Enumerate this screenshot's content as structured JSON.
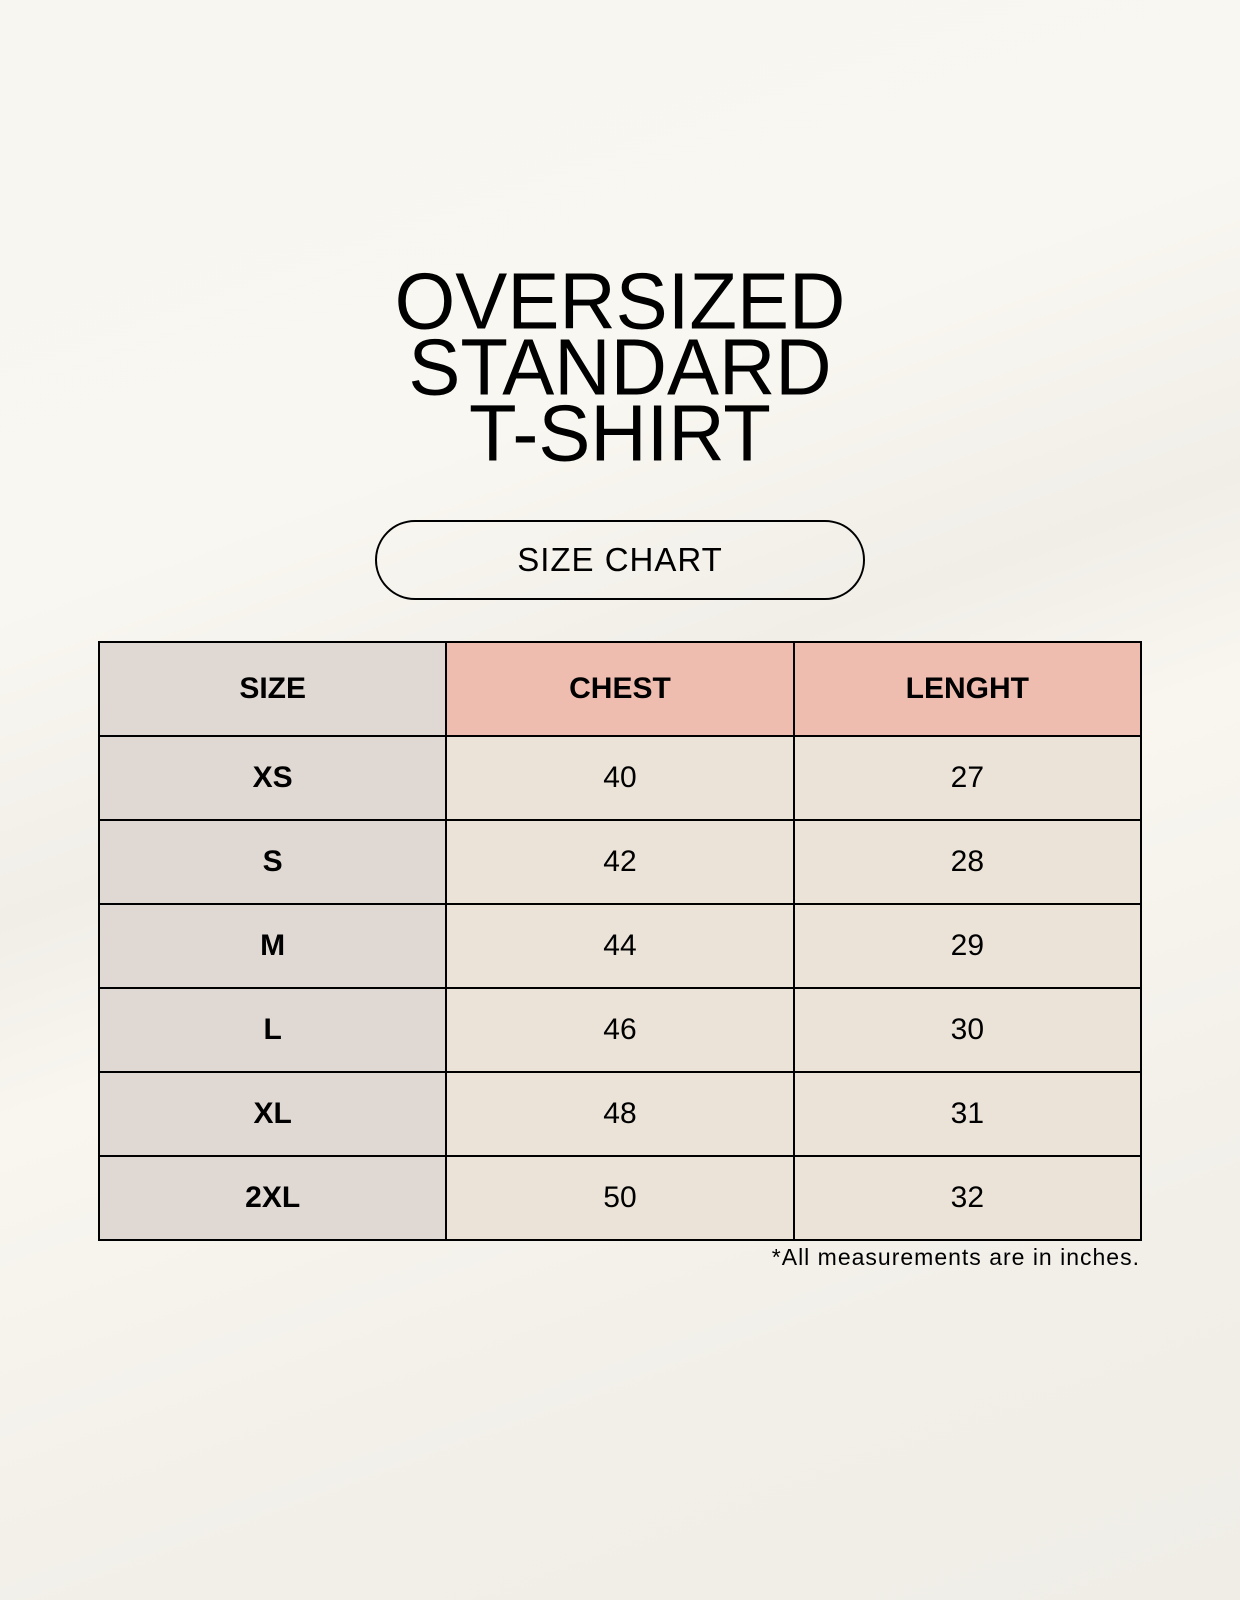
{
  "title": [
    "OVERSIZED",
    "STANDARD",
    "T-SHIRT"
  ],
  "badge": "SIZE CHART",
  "table": {
    "headers": [
      "SIZE",
      "CHEST",
      "LENGHT"
    ],
    "rows": [
      [
        "XS",
        "40",
        "27"
      ],
      [
        "S",
        "42",
        "28"
      ],
      [
        "M",
        "44",
        "29"
      ],
      [
        "L",
        "46",
        "30"
      ],
      [
        "XL",
        "48",
        "31"
      ],
      [
        "2XL",
        "50",
        "32"
      ]
    ]
  },
  "note": "*All measurements are in inches.",
  "colors": {
    "header_accent": "#efbdaf",
    "size_column": "#e0d8d2",
    "value_cells": "#ebe3d8"
  }
}
